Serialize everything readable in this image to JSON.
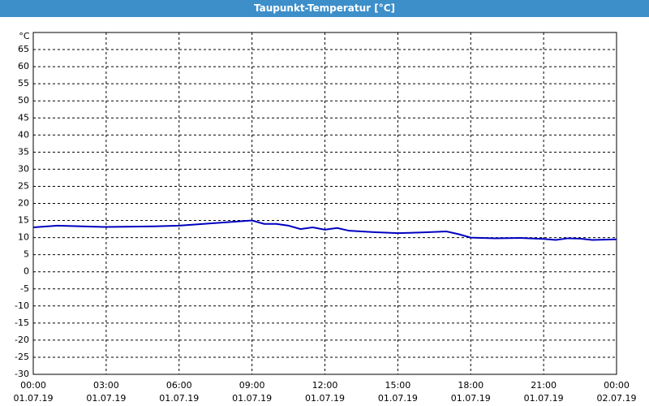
{
  "chart_data": {
    "type": "line",
    "title": "Taupunkt-Temperatur [°C]",
    "y_unit": "°C",
    "x": [
      0,
      1,
      2,
      3,
      4,
      5,
      6,
      7,
      8,
      9,
      9.5,
      10,
      10.5,
      11,
      11.5,
      12,
      12.5,
      13,
      14,
      15,
      16,
      17,
      17.5,
      18,
      19,
      20,
      21,
      21.5,
      22,
      22.5,
      23,
      24
    ],
    "series": [
      {
        "name": "Taupunkt",
        "color": "#0000c0",
        "values": [
          13,
          13.5,
          13.3,
          13.1,
          13.2,
          13.3,
          13.5,
          14,
          14.5,
          15,
          14,
          14,
          13.5,
          12.5,
          13,
          12.3,
          12.8,
          12,
          11.6,
          11.3,
          11.5,
          11.8,
          11,
          10,
          9.8,
          9.9,
          9.6,
          9.3,
          9.8,
          9.7,
          9.3,
          9.5
        ]
      }
    ],
    "xlim": [
      0,
      24
    ],
    "xticks": [
      {
        "value": 0,
        "label": "00:00"
      },
      {
        "value": 3,
        "label": "03:00"
      },
      {
        "value": 6,
        "label": "06:00"
      },
      {
        "value": 9,
        "label": "09:00"
      },
      {
        "value": 12,
        "label": "12:00"
      },
      {
        "value": 15,
        "label": "15:00"
      },
      {
        "value": 18,
        "label": "18:00"
      },
      {
        "value": 21,
        "label": "21:00"
      },
      {
        "value": 24,
        "label": "00:00"
      }
    ],
    "xtick_dates": [
      "01.07.19",
      "01.07.19",
      "01.07.19",
      "01.07.19",
      "01.07.19",
      "01.07.19",
      "01.07.19",
      "01.07.19",
      "02.07.19"
    ],
    "ylim": [
      -30,
      70
    ],
    "yticks": [
      -30,
      -25,
      -20,
      -15,
      -10,
      -5,
      0,
      5,
      10,
      15,
      20,
      25,
      30,
      35,
      40,
      45,
      50,
      55,
      60,
      65
    ],
    "grid": true
  }
}
